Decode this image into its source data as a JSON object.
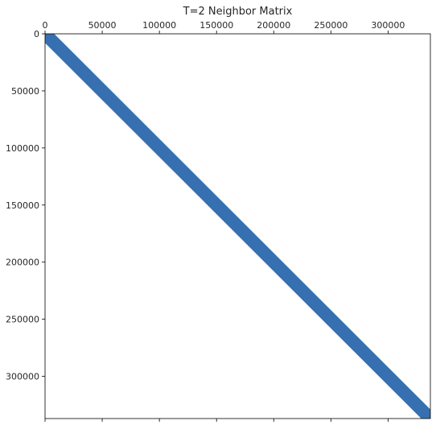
{
  "chart_data": {
    "type": "heatmap",
    "subtype": "sparsity-pattern",
    "title": "T=2 Neighbor Matrix",
    "xlabel": "",
    "ylabel": "",
    "xlim": [
      0,
      337000
    ],
    "ylim": [
      337000,
      0
    ],
    "x_axis_position": "top",
    "x_ticks": [
      0,
      50000,
      100000,
      150000,
      200000,
      250000,
      300000
    ],
    "x_tick_labels": [
      "0",
      "50000",
      "100000",
      "150000",
      "200000",
      "250000",
      "300000"
    ],
    "y_ticks": [
      0,
      50000,
      100000,
      150000,
      200000,
      250000,
      300000
    ],
    "y_tick_labels": [
      "0",
      "50000",
      "100000",
      "150000",
      "200000",
      "250000",
      "300000"
    ],
    "grid": false,
    "band": {
      "description_type": "diagonal",
      "half_width": 8000,
      "color": "#3670b0"
    }
  }
}
